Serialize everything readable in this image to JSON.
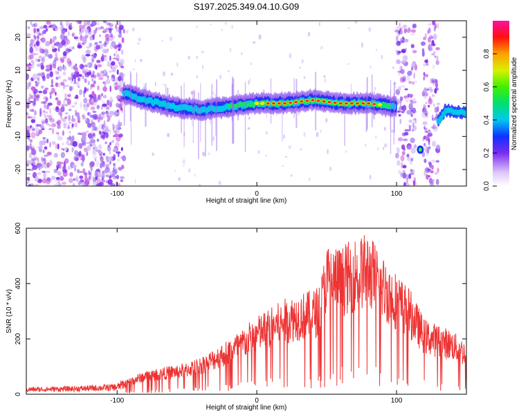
{
  "title": "S197.2025.349.04.10.G09",
  "chart_data": [
    {
      "type": "heatmap",
      "title": "S197.2025.349.04.10.G09",
      "xlabel": "Height of straight line (km)",
      "ylabel": "Frequency (Hz)",
      "xlim": [
        -165,
        150
      ],
      "ylim": [
        -25,
        25
      ],
      "xticks": [
        -100,
        0,
        100
      ],
      "yticks": [
        -20,
        -10,
        0,
        10,
        20
      ],
      "colorbar": {
        "label": "Normalized spectral amplitude",
        "range": [
          0,
          1
        ],
        "ticks": [
          0.0,
          0.2,
          0.4,
          0.6,
          0.8
        ]
      },
      "ridge": {
        "description": "dominant spectral line near 0 Hz",
        "points": [
          {
            "x": -95,
            "y": 3
          },
          {
            "x": -80,
            "y": 1
          },
          {
            "x": -60,
            "y": -1
          },
          {
            "x": -40,
            "y": -2
          },
          {
            "x": -20,
            "y": -1
          },
          {
            "x": 0,
            "y": 0
          },
          {
            "x": 20,
            "y": 0
          },
          {
            "x": 40,
            "y": 1
          },
          {
            "x": 60,
            "y": 0
          },
          {
            "x": 80,
            "y": 0
          },
          {
            "x": 100,
            "y": -1
          },
          {
            "x": 117,
            "y": -14
          },
          {
            "x": 135,
            "y": -2
          },
          {
            "x": 150,
            "y": -3
          }
        ]
      }
    },
    {
      "type": "line",
      "xlabel": "Height of straight line (km)",
      "ylabel": "SNR (10 * v/v)",
      "xlim": [
        -165,
        150
      ],
      "ylim": [
        0,
        600
      ],
      "xticks": [
        -100,
        0,
        100
      ],
      "yticks": [
        0,
        200,
        400,
        600
      ],
      "series": [
        {
          "name": "SNR",
          "color": "#ee3333",
          "x": [
            -165,
            -140,
            -120,
            -100,
            -90,
            -80,
            -70,
            -60,
            -50,
            -40,
            -30,
            -20,
            -10,
            0,
            10,
            20,
            30,
            40,
            45,
            50,
            60,
            70,
            80,
            90,
            100,
            110,
            120,
            130,
            140,
            150
          ],
          "values": [
            20,
            22,
            25,
            30,
            60,
            80,
            90,
            100,
            110,
            130,
            160,
            190,
            230,
            270,
            300,
            330,
            350,
            360,
            380,
            520,
            510,
            540,
            560,
            480,
            420,
            360,
            260,
            240,
            220,
            180
          ]
        }
      ]
    }
  ]
}
